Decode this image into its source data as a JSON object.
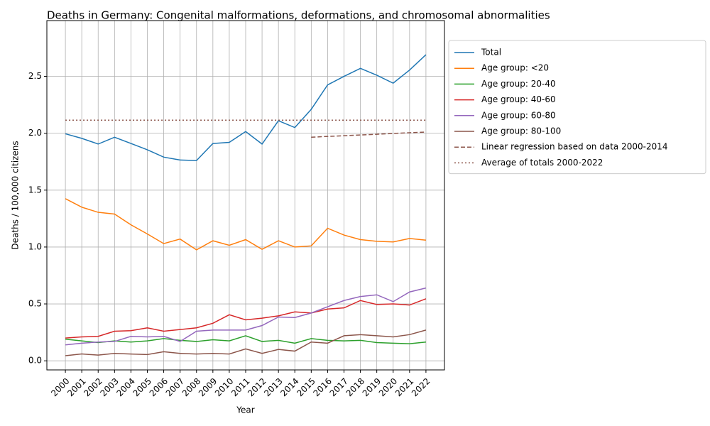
{
  "chart_data": {
    "type": "line",
    "title": "Deaths in Germany: Congenital malformations, deformations, and chromosomal abnormalities",
    "x_label": "Year",
    "y_label": "Deaths / 100,000 citizens",
    "x": [
      2000,
      2001,
      2002,
      2003,
      2004,
      2005,
      2006,
      2007,
      2008,
      2009,
      2010,
      2011,
      2012,
      2013,
      2014,
      2015,
      2016,
      2017,
      2018,
      2019,
      2020,
      2021,
      2022
    ],
    "xlim": [
      1998.87,
      2023.13
    ],
    "xticks": [
      2000,
      2001,
      2002,
      2003,
      2004,
      2005,
      2006,
      2007,
      2008,
      2009,
      2010,
      2011,
      2012,
      2013,
      2014,
      2015,
      2016,
      2017,
      2018,
      2019,
      2020,
      2021,
      2022
    ],
    "ylim": [
      -0.08,
      2.99
    ],
    "yticks": [
      {
        "value": 0,
        "label": "0.0"
      },
      0.5,
      {
        "value": 1,
        "label": "1.0"
      },
      1.5,
      {
        "value": 2,
        "label": "2.0"
      },
      2.5
    ],
    "grid": true,
    "legend": "outside-upper-right",
    "series": [
      {
        "name": "Total",
        "color": "#1f77b4",
        "style": "solid",
        "values": [
          1.995,
          1.955,
          1.905,
          1.965,
          1.91,
          1.855,
          1.79,
          1.765,
          1.76,
          1.91,
          1.92,
          2.015,
          1.905,
          2.11,
          2.05,
          2.21,
          2.425,
          2.5,
          2.57,
          2.51,
          2.44,
          2.555,
          2.69
        ]
      },
      {
        "name": "Age group: <20",
        "color": "#ff7f0e",
        "style": "solid",
        "values": [
          1.425,
          1.35,
          1.305,
          1.29,
          1.195,
          1.115,
          1.03,
          1.07,
          0.975,
          1.055,
          1.015,
          1.065,
          0.98,
          1.055,
          1.0,
          1.01,
          1.165,
          1.105,
          1.065,
          1.05,
          1.045,
          1.075,
          1.06
        ]
      },
      {
        "name": "Age group: 20-40",
        "color": "#2ca02c",
        "style": "solid",
        "values": [
          0.19,
          0.175,
          0.16,
          0.175,
          0.165,
          0.175,
          0.195,
          0.18,
          0.17,
          0.185,
          0.175,
          0.22,
          0.17,
          0.18,
          0.155,
          0.195,
          0.18,
          0.175,
          0.18,
          0.16,
          0.155,
          0.15,
          0.165
        ]
      },
      {
        "name": "Age group: 40-60",
        "color": "#d62728",
        "style": "solid",
        "values": [
          0.2,
          0.21,
          0.215,
          0.26,
          0.265,
          0.29,
          0.26,
          0.275,
          0.29,
          0.33,
          0.405,
          0.36,
          0.375,
          0.395,
          0.43,
          0.42,
          0.455,
          0.465,
          0.53,
          0.495,
          0.5,
          0.49,
          0.545
        ]
      },
      {
        "name": "Age group: 60-80",
        "color": "#9467bd",
        "style": "solid",
        "values": [
          0.14,
          0.155,
          0.165,
          0.17,
          0.215,
          0.21,
          0.215,
          0.17,
          0.26,
          0.27,
          0.27,
          0.27,
          0.31,
          0.385,
          0.38,
          0.42,
          0.475,
          0.53,
          0.565,
          0.58,
          0.52,
          0.605,
          0.64
        ]
      },
      {
        "name": "Age group: 80-100",
        "color": "#8c564b",
        "style": "solid",
        "values": [
          0.045,
          0.06,
          0.05,
          0.065,
          0.06,
          0.055,
          0.08,
          0.065,
          0.06,
          0.065,
          0.06,
          0.105,
          0.065,
          0.1,
          0.085,
          0.165,
          0.155,
          0.22,
          0.23,
          0.22,
          0.21,
          0.23,
          0.27
        ]
      },
      {
        "name": "Linear regression based on data 2000-2014",
        "color": "#8c564b",
        "style": "dashed",
        "values": [
          null,
          null,
          null,
          null,
          null,
          null,
          null,
          null,
          null,
          null,
          null,
          null,
          null,
          null,
          null,
          1.965,
          1.972,
          1.978,
          1.985,
          1.991,
          1.998,
          2.004,
          2.01
        ]
      },
      {
        "name": "Average of totals 2000-2022",
        "color": "#8c564b",
        "style": "dotted",
        "values": [
          2.115,
          2.115,
          2.115,
          2.115,
          2.115,
          2.115,
          2.115,
          2.115,
          2.115,
          2.115,
          2.115,
          2.115,
          2.115,
          2.115,
          2.115,
          2.115,
          2.115,
          2.115,
          2.115,
          2.115,
          2.115,
          2.115,
          2.115
        ]
      }
    ]
  }
}
